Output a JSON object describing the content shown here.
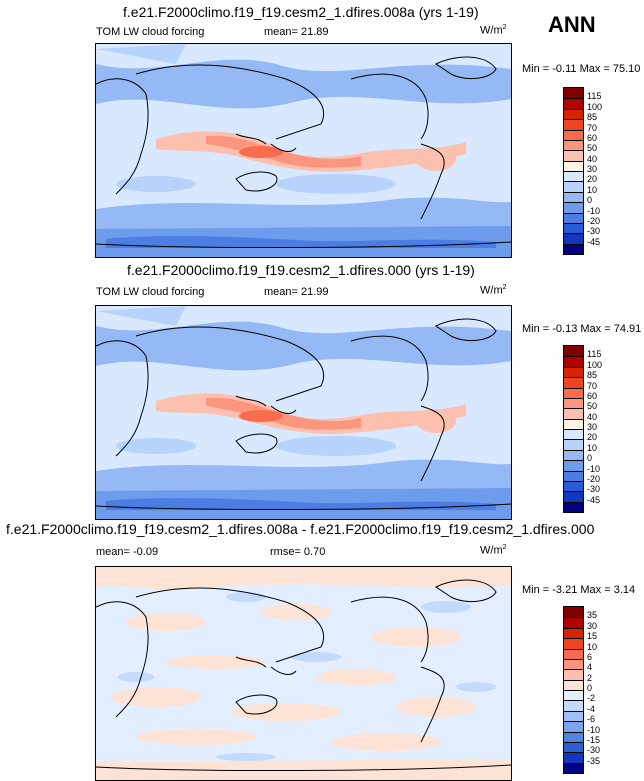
{
  "season": "ANN",
  "units_text": "W/m",
  "units_sup": "2",
  "chart_data": [
    {
      "type": "heatmap",
      "title": "f.e21.F2000climo.f19_f19.cesm2_1.dfires.008a (yrs 1-19)",
      "variable": "TOM LW cloud forcing",
      "stat_text": "mean=  21.89",
      "mean": 21.89,
      "minmax_text": "Min = -0.11 Max = 75.10",
      "min": -0.11,
      "max": 75.1,
      "colorbar": {
        "levels": [
          "115",
          "100",
          "85",
          "70",
          "60",
          "50",
          "40",
          "30",
          "20",
          "10",
          "0",
          "-10",
          "-20",
          "-30",
          "-45"
        ],
        "colors": [
          "#800000",
          "#b00000",
          "#d72400",
          "#ee4422",
          "#f76b4e",
          "#fb967e",
          "#fdc0ae",
          "#fff3e6",
          "#d8e9ff",
          "#b7d3fb",
          "#94b9f4",
          "#6e9cec",
          "#4b7de3",
          "#2a5bd6",
          "#1236bd",
          "#000080"
        ]
      }
    },
    {
      "type": "heatmap",
      "title": "f.e21.F2000climo.f19_f19.cesm2_1.dfires.000 (yrs 1-19)",
      "variable": "TOM LW cloud forcing",
      "stat_text": "mean=  21.99",
      "mean": 21.99,
      "minmax_text": "Min = -0.13 Max =  74.91",
      "min": -0.13,
      "max": 74.91,
      "colorbar": {
        "levels": [
          "115",
          "100",
          "85",
          "70",
          "60",
          "50",
          "40",
          "30",
          "20",
          "10",
          "0",
          "-10",
          "-20",
          "-30",
          "-45"
        ],
        "colors": [
          "#800000",
          "#b00000",
          "#d72400",
          "#ee4422",
          "#f76b4e",
          "#fb967e",
          "#fdc0ae",
          "#fff3e6",
          "#d8e9ff",
          "#b7d3fb",
          "#94b9f4",
          "#6e9cec",
          "#4b7de3",
          "#2a5bd6",
          "#1236bd",
          "#000080"
        ]
      }
    },
    {
      "type": "heatmap",
      "title": "f.e21.F2000climo.f19_f19.cesm2_1.dfires.008a - f.e21.F2000climo.f19_f19.cesm2_1.dfires.000",
      "stat_text": "mean=  -0.09",
      "mean": -0.09,
      "rmse_text": "rmse=   0.70",
      "rmse": 0.7,
      "minmax_text": "Min = -3.21 Max =   3.14",
      "min": -3.21,
      "max": 3.14,
      "colorbar": {
        "levels": [
          "35",
          "30",
          "15",
          "10",
          "6",
          "4",
          "2",
          "0",
          "-2",
          "-4",
          "-6",
          "-10",
          "-15",
          "-30",
          "-35"
        ],
        "colors": [
          "#800000",
          "#b00000",
          "#d72400",
          "#ee4422",
          "#f76b4e",
          "#fb967e",
          "#fdc0ae",
          "#fde3d6",
          "#e3efff",
          "#c3dafc",
          "#9ec0f6",
          "#7aa5ee",
          "#5185e3",
          "#2c5fd6",
          "#1236bd",
          "#000080"
        ]
      }
    }
  ]
}
